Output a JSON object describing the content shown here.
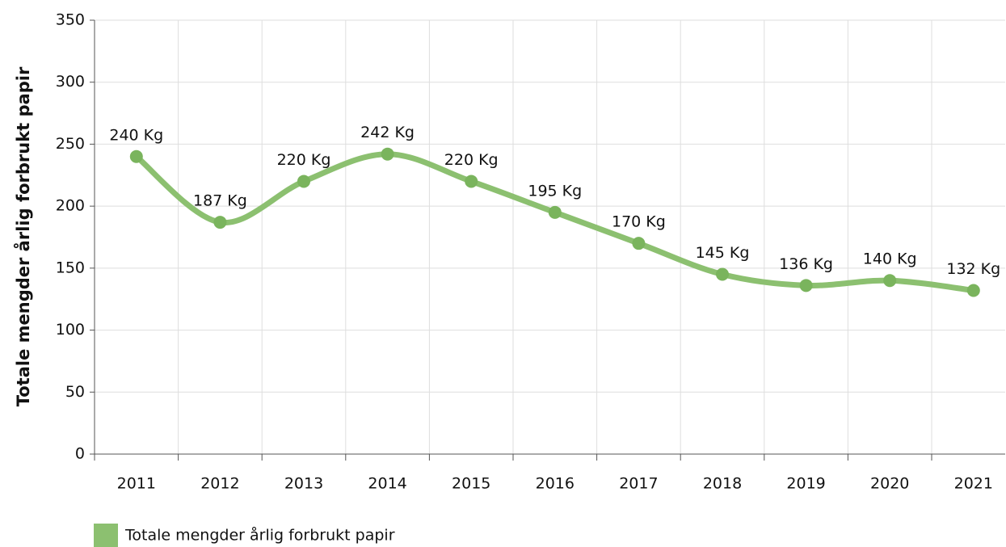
{
  "chart_data": {
    "type": "line",
    "ylabel": "Totale mengder årlig forbrukt papir",
    "categories": [
      "2011",
      "2012",
      "2013",
      "2014",
      "2015",
      "2016",
      "2017",
      "2018",
      "2019",
      "2020",
      "2021"
    ],
    "series": [
      {
        "name": "Totale mengder årlig forbrukt papir",
        "color": "#8cc070",
        "values": [
          240,
          187,
          220,
          242,
          220,
          195,
          170,
          145,
          136,
          140,
          132
        ],
        "value_labels": [
          "240 Kg",
          "187 Kg",
          "220 Kg",
          "242 Kg",
          "220 Kg",
          "195 Kg",
          "170 Kg",
          "145 Kg",
          "136 Kg",
          "140 Kg",
          "132 Kg"
        ]
      }
    ],
    "ylim": [
      0,
      350
    ],
    "yticks": [
      0,
      50,
      100,
      150,
      200,
      250,
      300,
      350
    ],
    "grid": true,
    "smooth": true,
    "legend": "bottom-left"
  }
}
